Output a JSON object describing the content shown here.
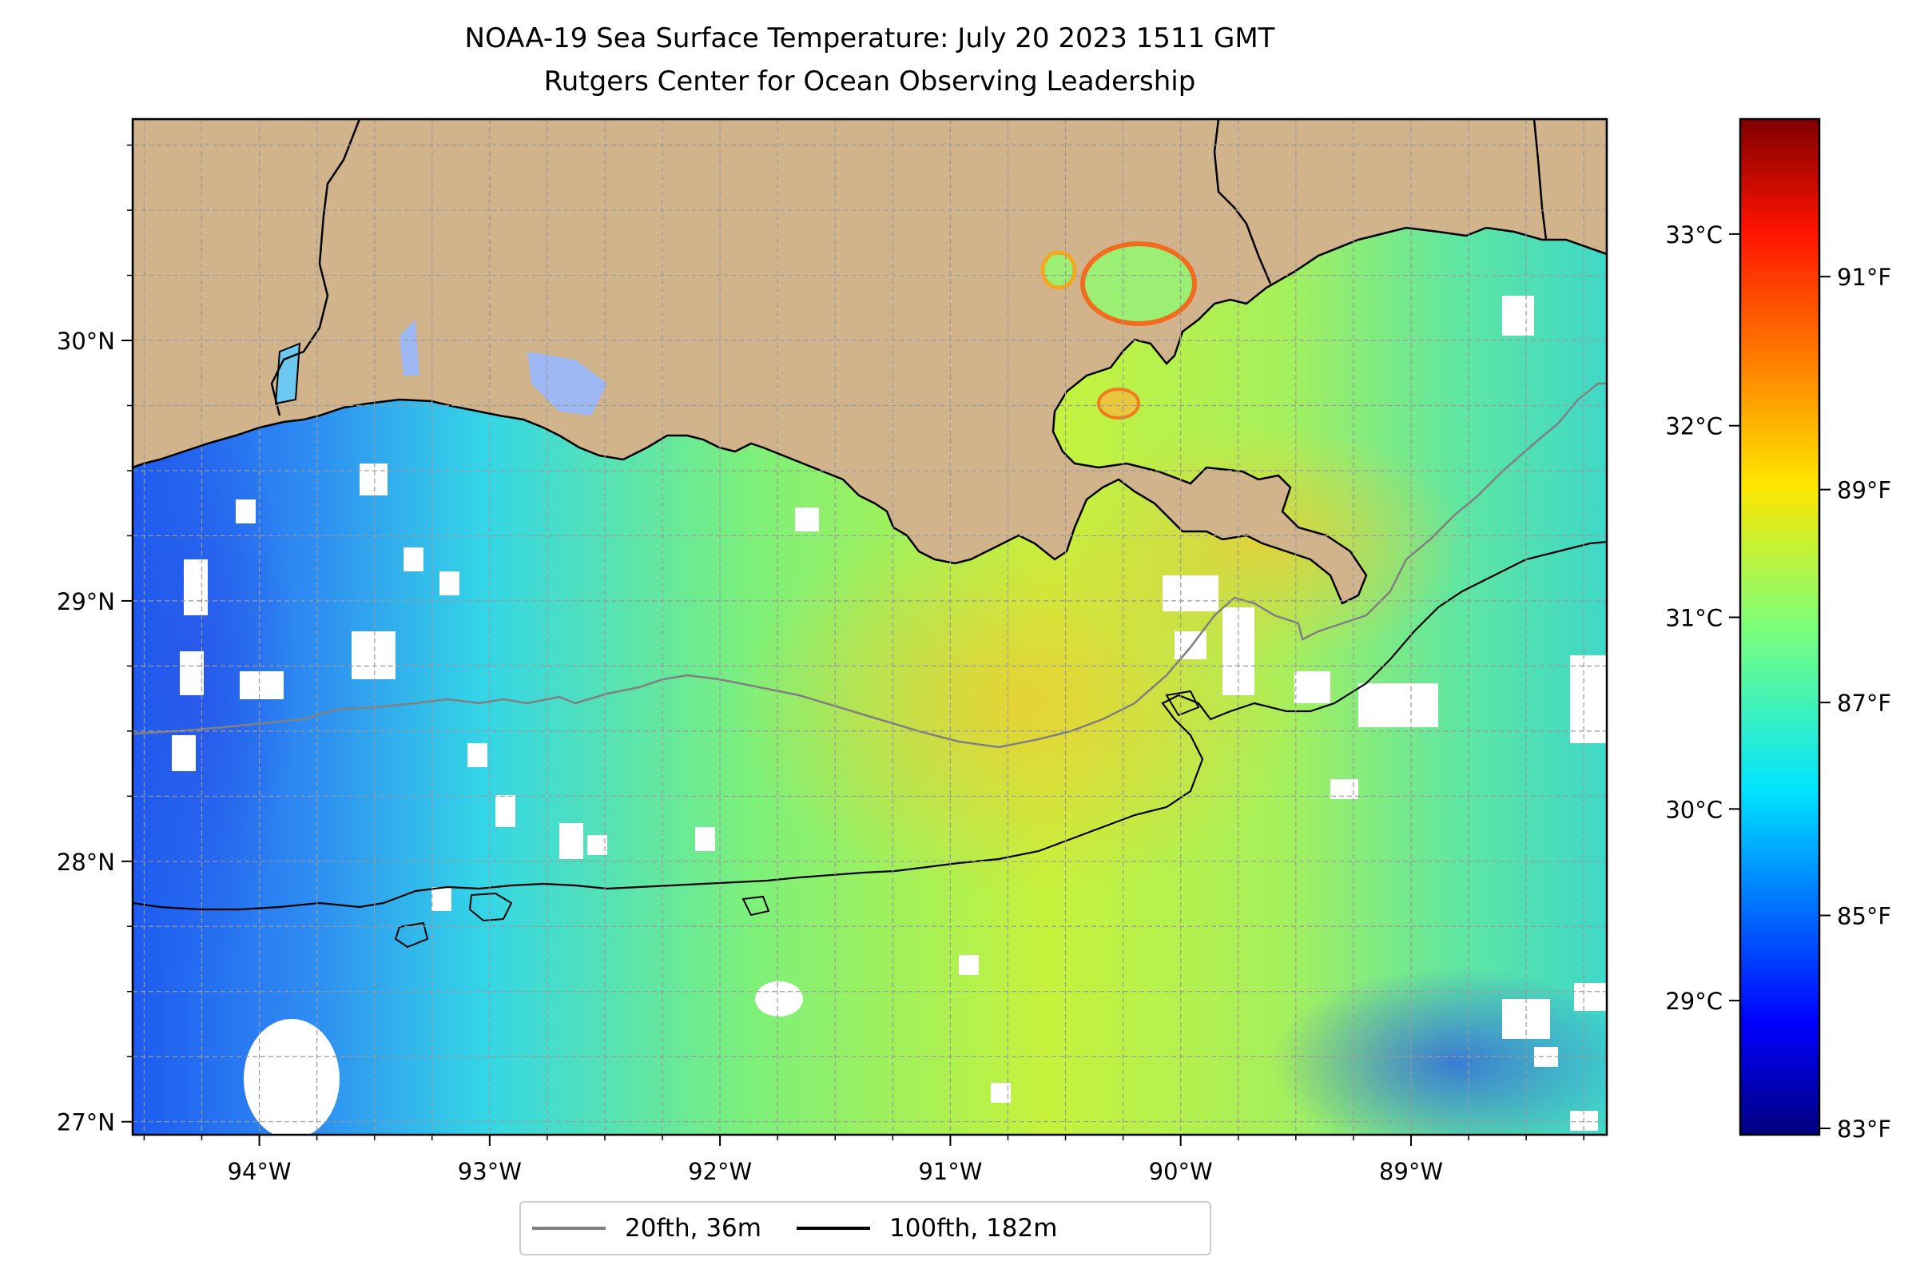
{
  "header": {
    "title": "NOAA-19 Sea Surface Temperature: July 20 2023 1511 GMT",
    "subtitle": "Rutgers Center for Ocean Observing Leadership"
  },
  "map": {
    "extent": {
      "lon": [
        -94.55,
        -88.15
      ],
      "lat": [
        26.95,
        30.85
      ]
    },
    "land_color": "#D2B48C",
    "grid": true,
    "lon_ticks": [
      {
        "value": -94,
        "label": "94°W"
      },
      {
        "value": -93,
        "label": "93°W"
      },
      {
        "value": -92,
        "label": "92°W"
      },
      {
        "value": -91,
        "label": "91°W"
      },
      {
        "value": -90,
        "label": "90°W"
      },
      {
        "value": -89,
        "label": "89°W"
      }
    ],
    "lat_ticks": [
      {
        "value": 27,
        "label": "27°N"
      },
      {
        "value": 28,
        "label": "28°N"
      },
      {
        "value": 29,
        "label": "29°N"
      },
      {
        "value": 30,
        "label": "30°N"
      }
    ],
    "colormap": "jet",
    "no_data_color": "#FFFFFF"
  },
  "legend": {
    "placement": "bottom-center",
    "items": [
      {
        "label": "20fth, 36m",
        "color": "#808080"
      },
      {
        "label": "100fth, 182m",
        "color": "#000000"
      }
    ]
  },
  "colorbar": {
    "celsius_range": [
      28.3,
      33.6
    ],
    "celsius_ticks": [
      {
        "value": 29,
        "label": "29°C"
      },
      {
        "value": 30,
        "label": "30°C"
      },
      {
        "value": 31,
        "label": "31°C"
      },
      {
        "value": 32,
        "label": "32°C"
      },
      {
        "value": 33,
        "label": "33°C"
      }
    ],
    "fahrenheit_ticks": [
      {
        "value": 83,
        "label": "83°F"
      },
      {
        "value": 85,
        "label": "85°F"
      },
      {
        "value": 87,
        "label": "87°F"
      },
      {
        "value": 89,
        "label": "89°F"
      },
      {
        "value": 91,
        "label": "91°F"
      }
    ]
  }
}
